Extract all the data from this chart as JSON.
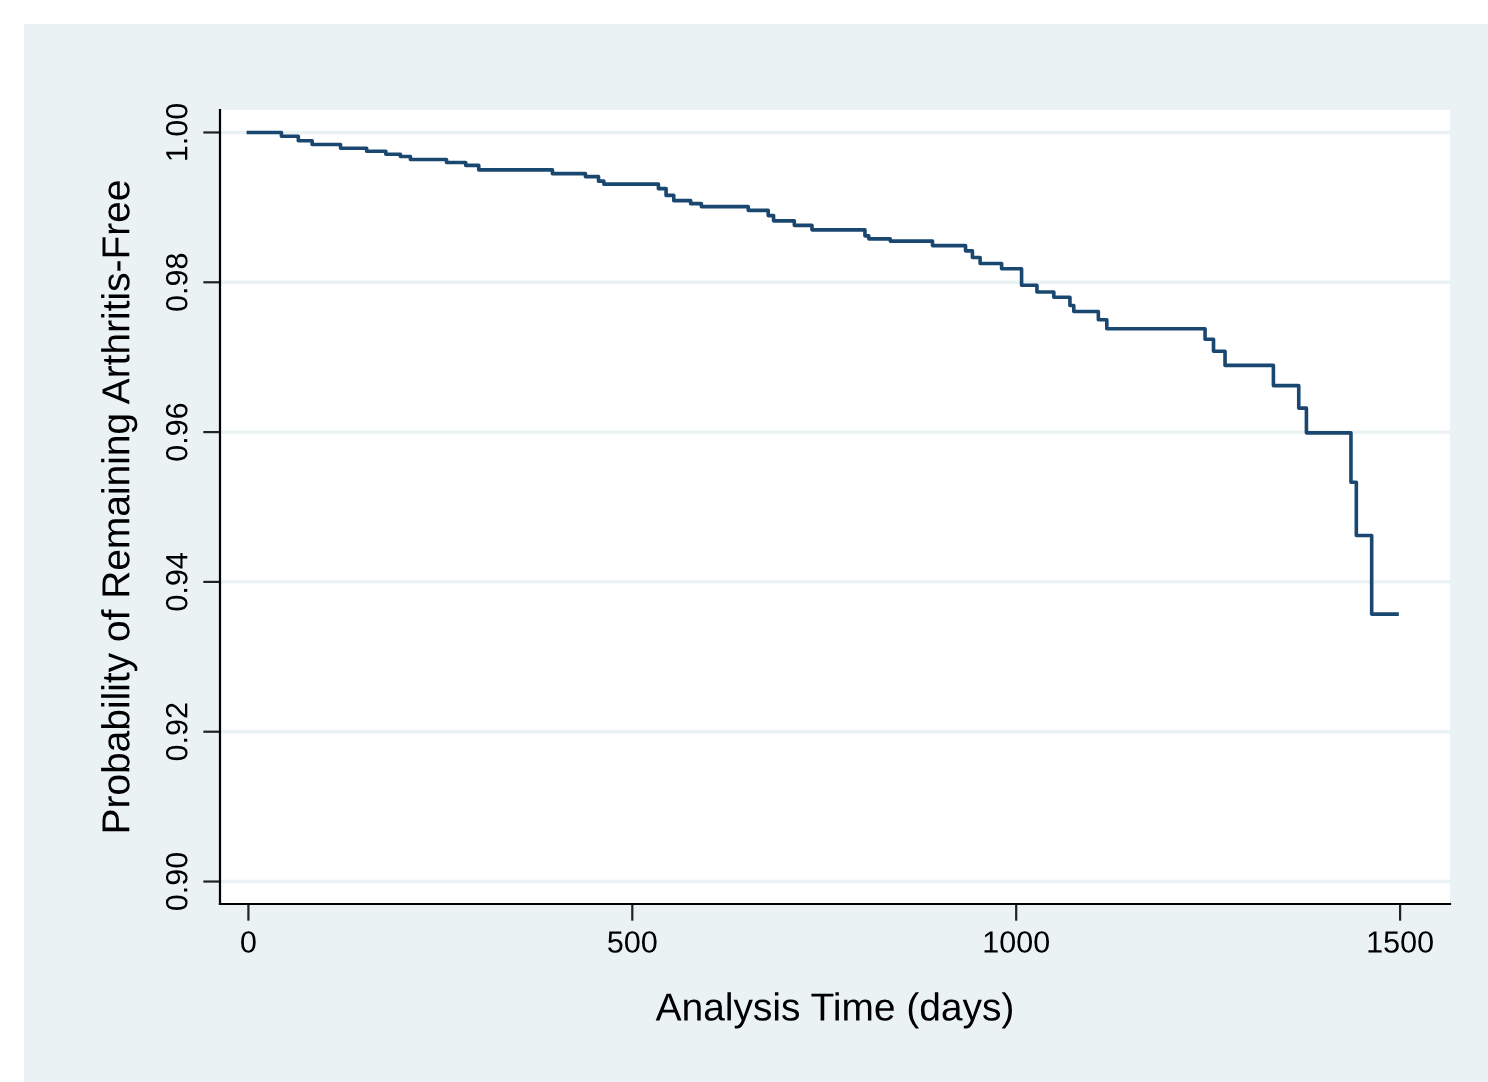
{
  "chart_data": {
    "type": "step",
    "xlabel": "Analysis Time (days)",
    "ylabel": "Probability of Remaining Arthritis-Free",
    "x": [
      0,
      43,
      65,
      83,
      120,
      154,
      179,
      198,
      211,
      258,
      283,
      300,
      396,
      439,
      456,
      463,
      534,
      544,
      554,
      576,
      590,
      651,
      677,
      684,
      711,
      734,
      803,
      808,
      836,
      891,
      934,
      943,
      953,
      981,
      1007,
      1027,
      1049,
      1070,
      1075,
      1107,
      1118,
      1246,
      1257,
      1272,
      1335,
      1368,
      1378,
      1436,
      1443,
      1463,
      1496
    ],
    "series": [
      {
        "color": "#1a476f",
        "values": [
          1.0,
          0.9995,
          0.9989,
          0.9984,
          0.9979,
          0.9975,
          0.9971,
          0.9968,
          0.9964,
          0.996,
          0.9956,
          0.995,
          0.9945,
          0.9941,
          0.9935,
          0.9931,
          0.9925,
          0.9916,
          0.9909,
          0.9905,
          0.9901,
          0.9896,
          0.9889,
          0.9882,
          0.9876,
          0.987,
          0.9862,
          0.9858,
          0.9855,
          0.9849,
          0.9842,
          0.9833,
          0.9825,
          0.9818,
          0.9796,
          0.9787,
          0.978,
          0.9769,
          0.9761,
          0.975,
          0.9738,
          0.9724,
          0.9708,
          0.9689,
          0.9662,
          0.9632,
          0.9599,
          0.9533,
          0.9462,
          0.9357,
          0.9357
        ]
      }
    ],
    "xlim": [
      -37,
      1565
    ],
    "ylim": [
      0.897,
      1.003
    ],
    "xticks": [
      0,
      500,
      1000,
      1500
    ],
    "yticks": [
      {
        "value": 0.9,
        "label": "0.90"
      },
      {
        "value": 0.92,
        "label": "0.92"
      },
      {
        "value": 0.94,
        "label": "0.94"
      },
      {
        "value": 0.96,
        "label": "0.96"
      },
      {
        "value": 0.98,
        "label": "0.98"
      },
      {
        "value": 1.0,
        "label": "1.00"
      }
    ],
    "grid": "y",
    "line_style": "solid",
    "marker": "none"
  }
}
